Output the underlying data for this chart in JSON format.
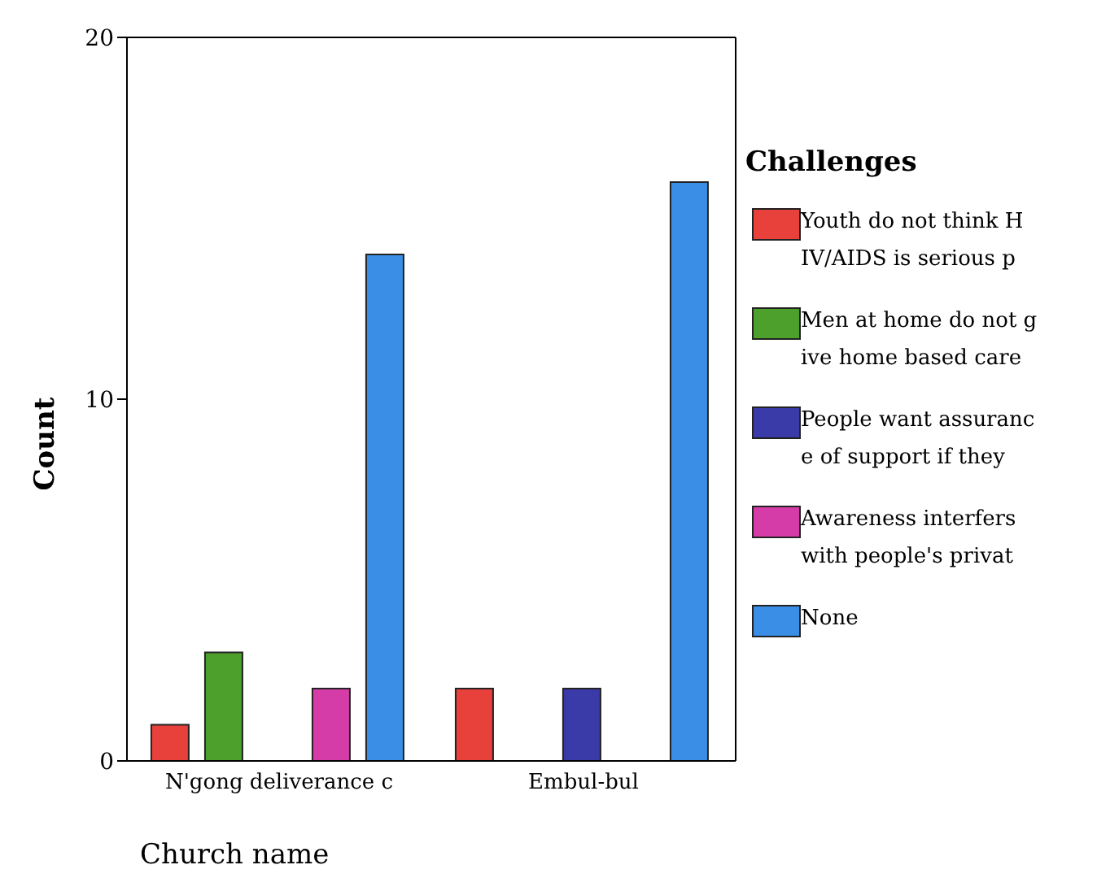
{
  "chart_data": {
    "type": "bar",
    "xlabel": "Church name",
    "ylabel": "Count",
    "legend_title": "Challenges",
    "categories": [
      "N'gong deliverance c",
      "Embul-bul"
    ],
    "series": [
      {
        "name": "Youth do not think HIV/AIDS is serious p",
        "color": "#e8403a",
        "values": [
          1,
          2
        ]
      },
      {
        "name": "Men at home do not give home based care",
        "color": "#4ea02c",
        "values": [
          3,
          null
        ]
      },
      {
        "name": "People want assurance of support if they",
        "color": "#3a3aa8",
        "values": [
          null,
          2
        ]
      },
      {
        "name": "Awareness interfers with people's privat",
        "color": "#d63ca8",
        "values": [
          2,
          null
        ]
      },
      {
        "name": "None",
        "color": "#3a8ee6",
        "values": [
          14,
          16
        ]
      }
    ],
    "ylim": [
      0,
      20
    ],
    "yticks": [
      0,
      10,
      20
    ],
    "grid": false,
    "legend": "right"
  }
}
